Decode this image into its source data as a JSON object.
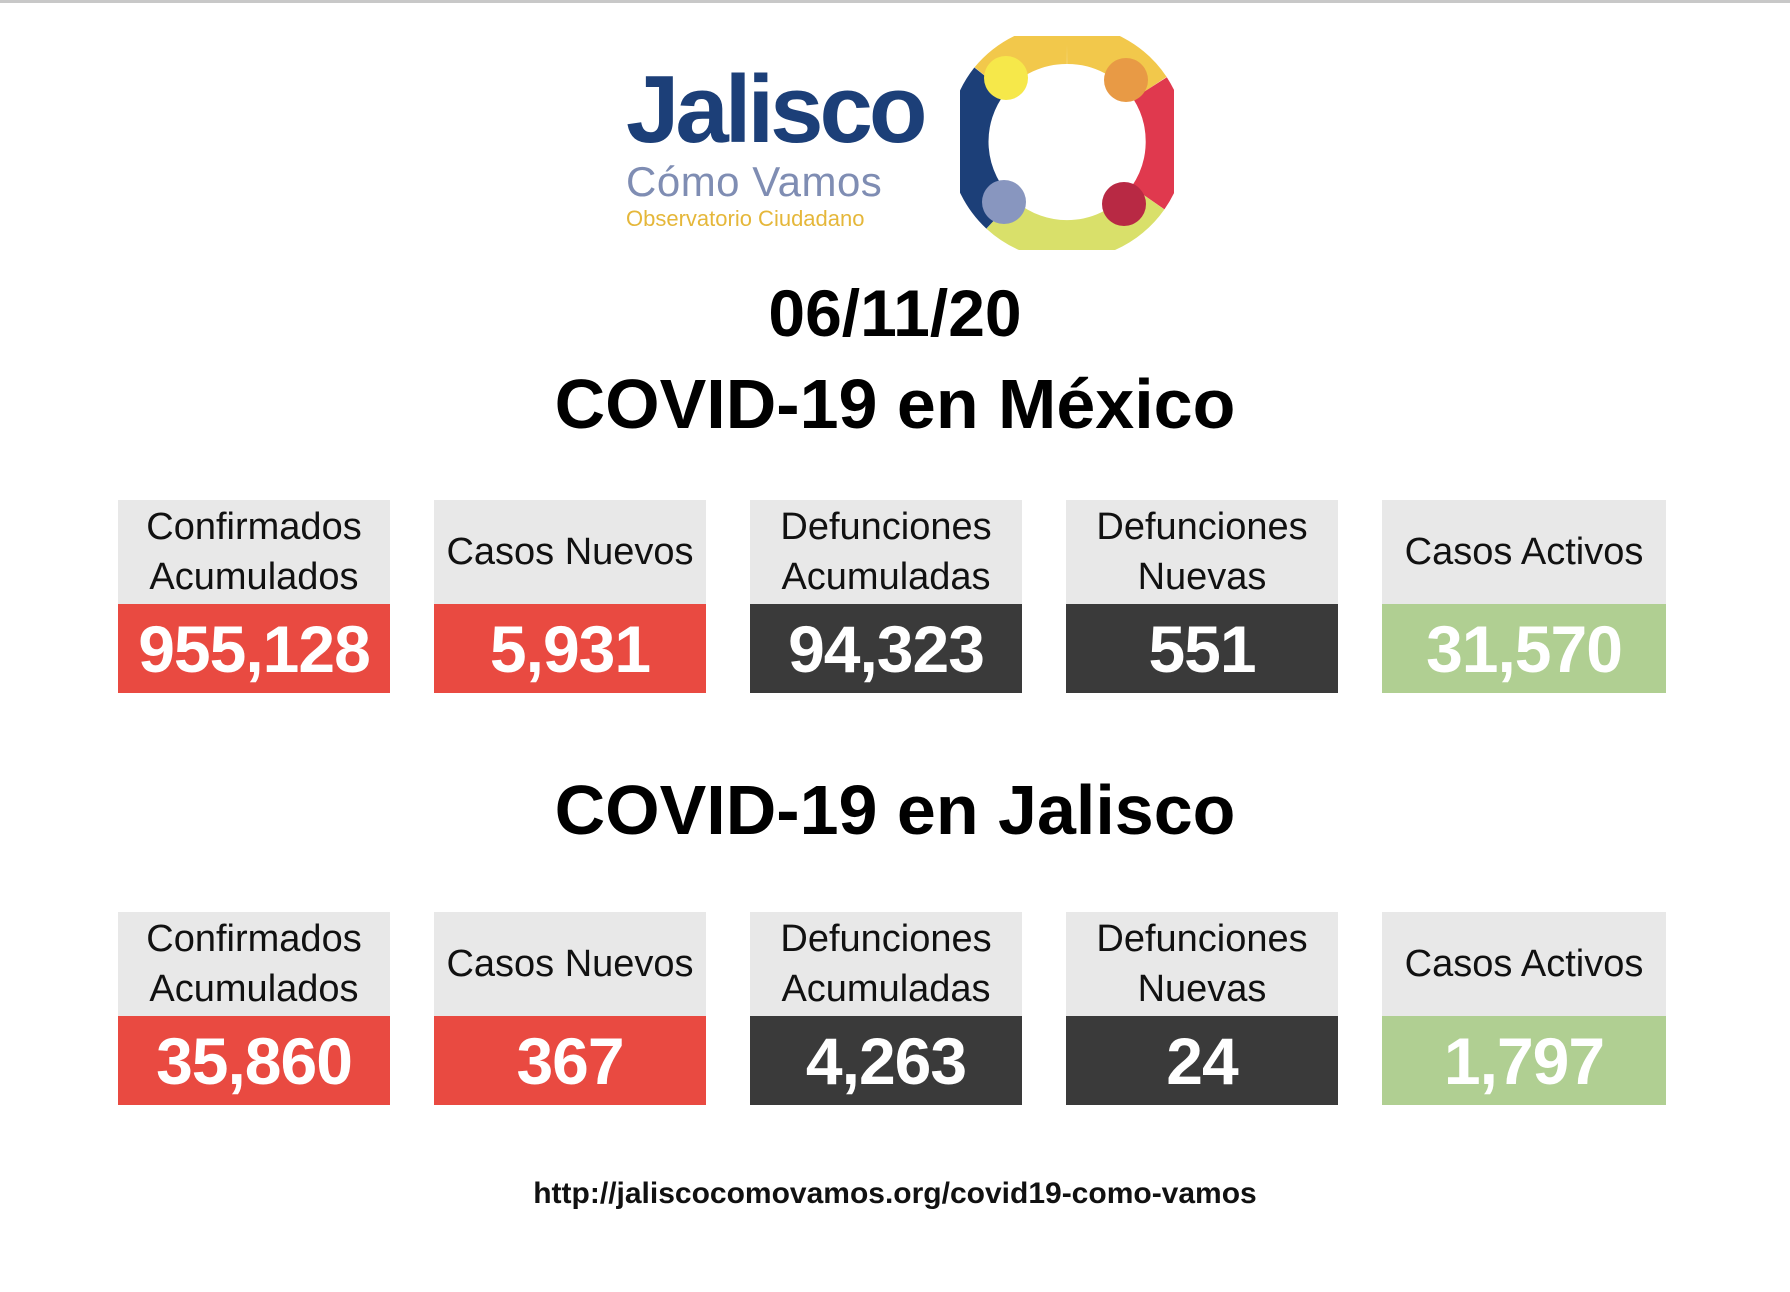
{
  "logo": {
    "main": "Jalisco",
    "sub": "Cómo Vamos",
    "tag": "Observatorio Ciudadano"
  },
  "date": "06/11/20",
  "mexico": {
    "heading": "COVID-19 en México",
    "stats": [
      {
        "label": "Confirmados\nAcumulados",
        "value": "955,128",
        "color": "#e94a41"
      },
      {
        "label": "Casos Nuevos",
        "value": "5,931",
        "color": "#e94a41"
      },
      {
        "label": "Defunciones\nAcumuladas",
        "value": "94,323",
        "color": "#3a3a3a"
      },
      {
        "label": "Defunciones\nNuevas",
        "value": "551",
        "color": "#3a3a3a"
      },
      {
        "label": "Casos Activos",
        "value": "31,570",
        "color": "#b0cf92"
      }
    ]
  },
  "jalisco": {
    "heading": "COVID-19 en Jalisco",
    "stats": [
      {
        "label": "Confirmados\nAcumulados",
        "value": "35,860",
        "color": "#e94a41"
      },
      {
        "label": "Casos Nuevos",
        "value": "367",
        "color": "#e94a41"
      },
      {
        "label": "Defunciones\nAcumuladas",
        "value": "4,263",
        "color": "#3a3a3a"
      },
      {
        "label": "Defunciones\nNuevas",
        "value": "24",
        "color": "#3a3a3a"
      },
      {
        "label": "Casos Activos",
        "value": "1,797",
        "color": "#b0cf92"
      }
    ]
  },
  "footer": {
    "url": "http://jaliscocomovamos.org/covid19-como-vamos"
  }
}
